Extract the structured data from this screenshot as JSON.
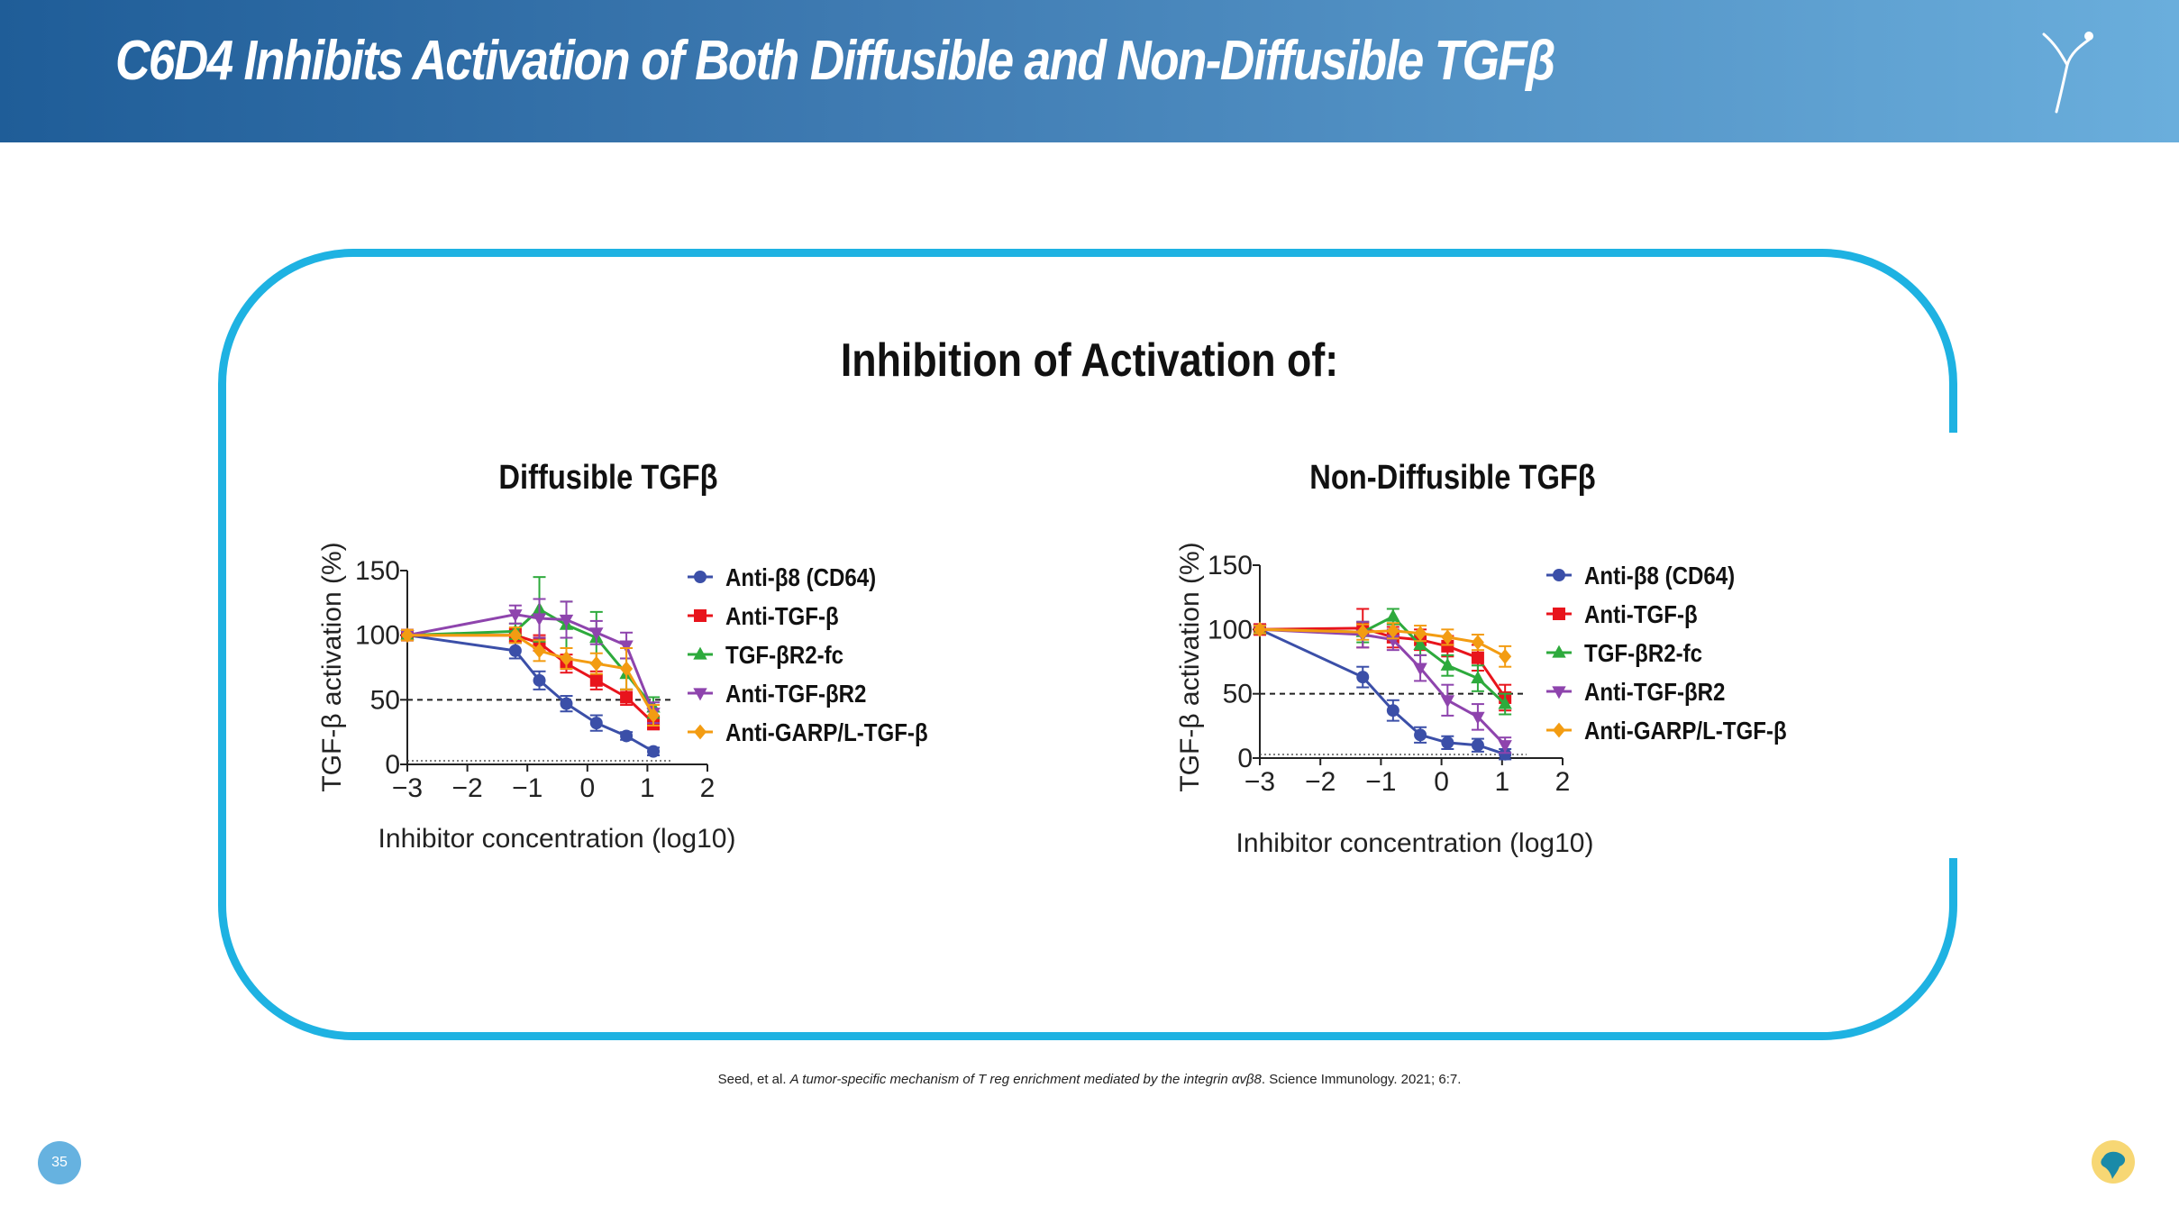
{
  "header": {
    "title": "C6D4 Inhibits Activation of Both Diffusible and Non-Diffusible TGFβ"
  },
  "main": {
    "heading": "Inhibition of Activation of:"
  },
  "chart_data": [
    {
      "type": "scatter",
      "title": "Diffusible TGFβ",
      "xlabel": "Inhibitor concentration (log10)",
      "ylabel": "TGF-β activation (%)",
      "xlim": [
        -3,
        2
      ],
      "ylim": [
        0,
        150
      ],
      "xticks": [
        "−3",
        "−2",
        "−1",
        "0",
        "1",
        "2"
      ],
      "yticks": [
        "0",
        "50",
        "100",
        "150"
      ],
      "reference_line": 50,
      "legend_position": "right",
      "series": [
        {
          "name": "Anti-β8 (CD64)",
          "color": "#3b4fa8",
          "marker": "circle",
          "x": [
            -3,
            -1.2,
            -0.8,
            -0.35,
            0.15,
            0.65,
            1.1
          ],
          "y": [
            100,
            88,
            65,
            47,
            32,
            22,
            10
          ],
          "err": [
            4,
            6,
            7,
            6,
            6,
            3,
            3
          ]
        },
        {
          "name": "Anti-TGF-β",
          "color": "#e8141c",
          "marker": "square",
          "x": [
            -3,
            -1.2,
            -0.8,
            -0.35,
            0.15,
            0.65,
            1.1
          ],
          "y": [
            100,
            100,
            94,
            78,
            65,
            52,
            32
          ],
          "err": [
            4,
            5,
            6,
            7,
            7,
            6,
            5
          ]
        },
        {
          "name": "TGF-βR2-fc",
          "color": "#2daa3c",
          "marker": "triangle-up",
          "x": [
            -3,
            -1.2,
            -0.8,
            -0.35,
            0.15,
            0.65,
            1.1
          ],
          "y": [
            100,
            103,
            120,
            108,
            98,
            70,
            44
          ],
          "err": [
            4,
            6,
            25,
            18,
            20,
            12,
            8
          ]
        },
        {
          "name": "Anti-TGF-βR2",
          "color": "#8e44ad",
          "marker": "triangle-down",
          "x": [
            -3,
            -1.2,
            -0.8,
            -0.35,
            0.15,
            0.65,
            1.1
          ],
          "y": [
            100,
            116,
            113,
            112,
            102,
            92,
            40
          ],
          "err": [
            4,
            7,
            15,
            14,
            9,
            10,
            8
          ]
        },
        {
          "name": "Anti-GARP/L-TGF-β",
          "color": "#f39c12",
          "marker": "diamond",
          "x": [
            -3,
            -1.2,
            -0.8,
            -0.35,
            0.15,
            0.65,
            1.1
          ],
          "y": [
            100,
            100,
            88,
            82,
            78,
            74,
            38
          ],
          "err": [
            4,
            6,
            8,
            8,
            8,
            16,
            8
          ]
        }
      ]
    },
    {
      "type": "scatter",
      "title": "Non-Diffusible TGFβ",
      "xlabel": "Inhibitor concentration (log10)",
      "ylabel": "TGF-β activation (%)",
      "xlim": [
        -3,
        2
      ],
      "ylim": [
        0,
        150
      ],
      "xticks": [
        "−3",
        "−2",
        "−1",
        "0",
        "1",
        "2"
      ],
      "yticks": [
        "0",
        "50",
        "100",
        "150"
      ],
      "reference_line": 50,
      "legend_position": "right",
      "series": [
        {
          "name": "Anti-β8 (CD64)",
          "color": "#3b4fa8",
          "marker": "circle",
          "x": [
            -3,
            -1.3,
            -0.8,
            -0.35,
            0.1,
            0.6,
            1.05
          ],
          "y": [
            100,
            63,
            37,
            18,
            12,
            10,
            3
          ],
          "err": [
            3,
            8,
            8,
            6,
            5,
            5,
            4
          ]
        },
        {
          "name": "Anti-TGF-β",
          "color": "#e8141c",
          "marker": "square",
          "x": [
            -3,
            -1.3,
            -0.8,
            -0.35,
            0.1,
            0.6,
            1.05
          ],
          "y": [
            100,
            101,
            94,
            92,
            87,
            78,
            47
          ],
          "err": [
            3,
            15,
            8,
            8,
            8,
            10,
            10
          ]
        },
        {
          "name": "TGF-βR2-fc",
          "color": "#2daa3c",
          "marker": "triangle-up",
          "x": [
            -3,
            -1.3,
            -0.8,
            -0.35,
            0.1,
            0.6,
            1.05
          ],
          "y": [
            100,
            98,
            110,
            88,
            72,
            62,
            42
          ],
          "err": [
            3,
            8,
            6,
            8,
            8,
            10,
            8
          ]
        },
        {
          "name": "Anti-TGF-βR2",
          "color": "#8e44ad",
          "marker": "triangle-down",
          "x": [
            -3,
            -1.3,
            -0.8,
            -0.35,
            0.1,
            0.6,
            1.05
          ],
          "y": [
            100,
            96,
            92,
            70,
            45,
            32,
            10
          ],
          "err": [
            3,
            10,
            8,
            10,
            12,
            10,
            6
          ]
        },
        {
          "name": "Anti-GARP/L-TGF-β",
          "color": "#f39c12",
          "marker": "diamond",
          "x": [
            -3,
            -1.3,
            -0.8,
            -0.35,
            0.1,
            0.6,
            1.05
          ],
          "y": [
            100,
            98,
            99,
            97,
            94,
            90,
            79
          ],
          "err": [
            3,
            6,
            6,
            6,
            6,
            6,
            8
          ]
        }
      ]
    }
  ],
  "footer": {
    "citation_authors": "Seed, et al. ",
    "citation_title": "A tumor-specific mechanism of T reg enrichment mediated by the integrin αvβ8",
    "citation_journal": ". Science Immunology. 2021; 6:7.",
    "page_number": "35"
  }
}
